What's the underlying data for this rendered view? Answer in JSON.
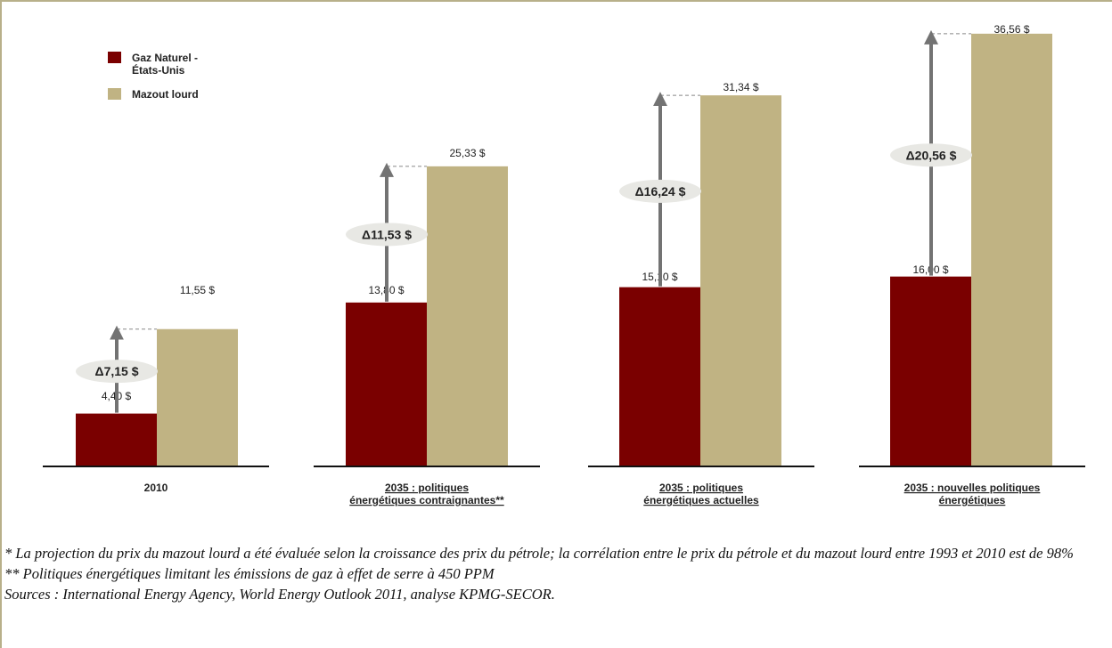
{
  "chart_data": {
    "type": "bar",
    "title": "",
    "categories": [
      [
        "2010"
      ],
      [
        "2035 : politiques",
        "énergétiques contraignantes**"
      ],
      [
        "2035 : politiques",
        "énergétiques actuelles"
      ],
      [
        "2035 : nouvelles politiques",
        "énergétiques"
      ]
    ],
    "series": [
      {
        "name": [
          "Gaz Naturel -",
          "États-Unis"
        ],
        "color": "#7a0000",
        "values": [
          4.4,
          13.8,
          15.1,
          16.0
        ],
        "labels": [
          "4,40 $",
          "13,80 $",
          "15,10 $",
          "16,00 $"
        ]
      },
      {
        "name": [
          "Mazout lourd"
        ],
        "color": "#c0b383",
        "values": [
          11.55,
          25.33,
          31.34,
          36.56
        ],
        "labels": [
          "11,55 $",
          "25,33 $",
          "31,34 $",
          "36,56 $"
        ]
      }
    ],
    "deltas": [
      "Δ7,15 $",
      "Δ11,53 $",
      "Δ16,24 $",
      "Δ20,56 $"
    ],
    "ylim": [
      0,
      37
    ],
    "legend_position": "top-left",
    "grid": false
  },
  "notes": [
    "* La projection du prix du mazout lourd a été évaluée selon la croissance des prix du pétrole; la corrélation entre le prix du pétrole et du mazout lourd entre 1993 et 2010 est de 98%",
    "** Politiques énergétiques limitant les émissions de gaz à effet de serre à 450 PPM",
    "Sources :  International Energy Agency, World Energy Outlook 2011, analyse KPMG-SECOR."
  ]
}
